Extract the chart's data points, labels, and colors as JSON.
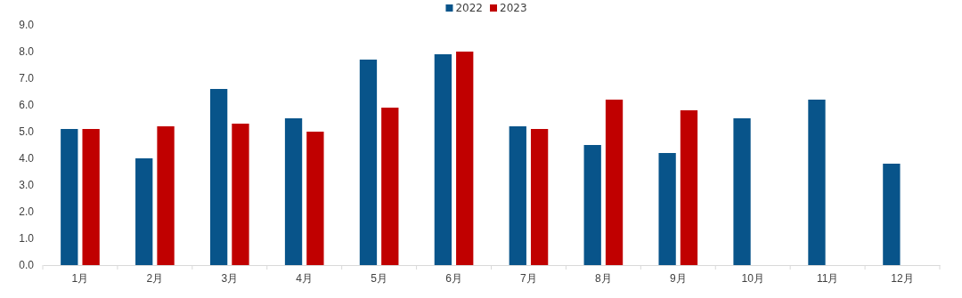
{
  "chart_data": {
    "type": "bar",
    "categories": [
      "1月",
      "2月",
      "3月",
      "4月",
      "5月",
      "6月",
      "7月",
      "8月",
      "9月",
      "10月",
      "11月",
      "12月"
    ],
    "series": [
      {
        "name": "2022",
        "color": "#08548a",
        "values": [
          5.1,
          4.0,
          6.6,
          5.5,
          7.7,
          7.9,
          5.2,
          4.5,
          4.2,
          5.5,
          6.2,
          3.8
        ]
      },
      {
        "name": "2023",
        "color": "#c00000",
        "values": [
          5.1,
          5.2,
          5.3,
          5.0,
          5.9,
          8.0,
          5.1,
          6.2,
          5.8,
          null,
          null,
          null
        ]
      }
    ],
    "ylim": [
      0,
      9
    ],
    "yticks": [
      {
        "value": 0,
        "label": "0.0"
      },
      {
        "value": 1,
        "label": "1.0"
      },
      {
        "value": 2,
        "label": "2.0"
      },
      {
        "value": 3,
        "label": "3.0"
      },
      {
        "value": 4,
        "label": "4.0"
      },
      {
        "value": 5,
        "label": "5.0"
      },
      {
        "value": 6,
        "label": "6.0"
      },
      {
        "value": 7,
        "label": "7.0"
      },
      {
        "value": 8,
        "label": "8.0"
      },
      {
        "value": 9,
        "label": "9.0"
      }
    ],
    "grid": false,
    "legend": "top"
  }
}
